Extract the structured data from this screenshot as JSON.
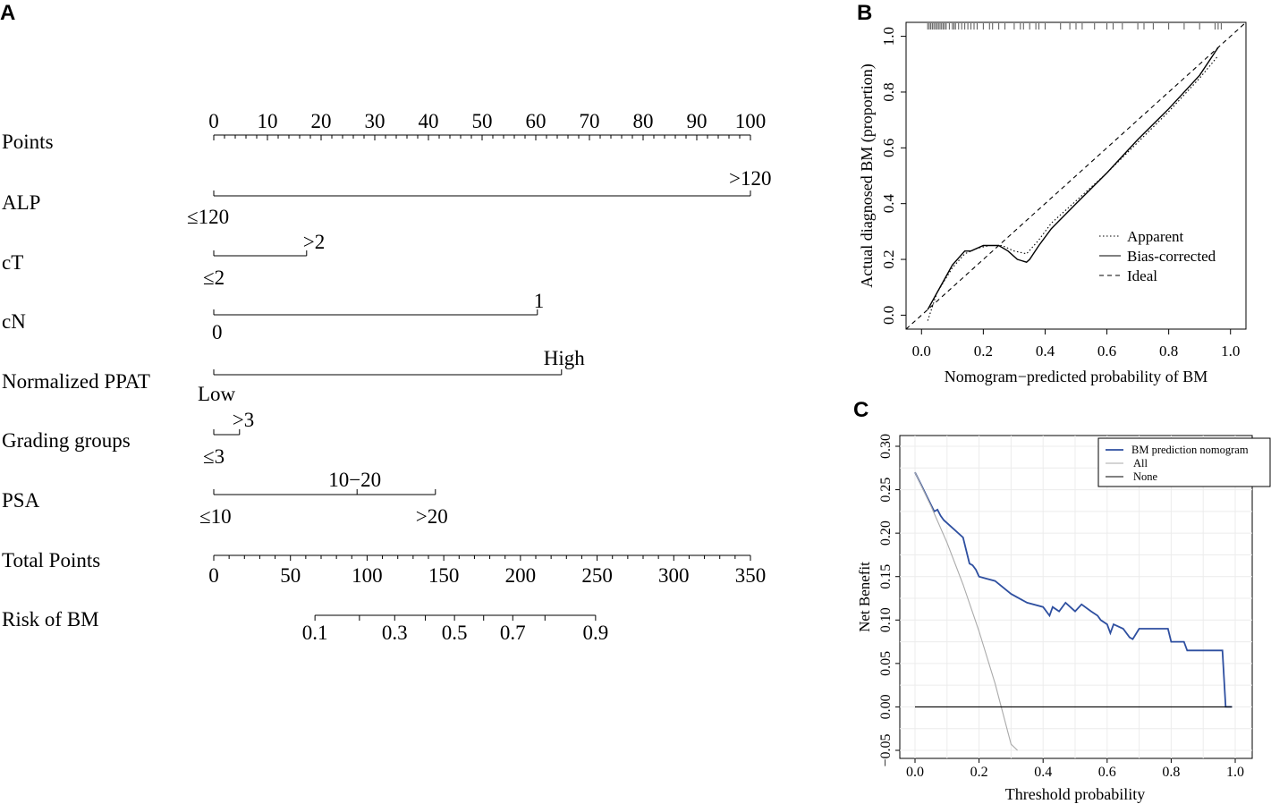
{
  "panel_labels": {
    "a": "A",
    "b": "B",
    "c": "C"
  },
  "chart_data": [
    {
      "type": "nomogram",
      "panel": "A",
      "points_axis": {
        "label": "Points",
        "min": 0,
        "max": 100,
        "major_ticks": [
          0,
          10,
          20,
          30,
          40,
          50,
          60,
          70,
          80,
          90,
          100
        ],
        "minor_step": 2
      },
      "variables": [
        {
          "name": "ALP",
          "levels": [
            {
              "label": "≤120",
              "points": 0
            },
            {
              "label": ">120",
              "points": 100
            }
          ]
        },
        {
          "name": "cT",
          "levels": [
            {
              "label": "≤2",
              "points": 0
            },
            {
              "label": ">2",
              "points": 17.3
            }
          ]
        },
        {
          "name": "cN",
          "levels": [
            {
              "label": "0",
              "points": 0
            },
            {
              "label": "1",
              "points": 60.3
            }
          ]
        },
        {
          "name": "Normalized PPAT",
          "levels": [
            {
              "label": "Low",
              "points": 0
            },
            {
              "label": "High",
              "points": 64.8
            }
          ]
        },
        {
          "name": "Grading groups",
          "levels": [
            {
              "label": "≤3",
              "points": 0
            },
            {
              "label": ">3",
              "points": 4.8
            }
          ]
        },
        {
          "name": "PSA",
          "levels": [
            {
              "label": "≤10",
              "points": 0
            },
            {
              "label": "10−20",
              "points": 26.7
            },
            {
              "label": ">20",
              "points": 41.3
            }
          ]
        }
      ],
      "total_points_axis": {
        "label": "Total Points",
        "min": 0,
        "max": 350,
        "major_ticks": [
          0,
          50,
          100,
          150,
          200,
          250,
          300,
          350
        ],
        "minor_step": 10
      },
      "risk_axis": {
        "label": "Risk of BM",
        "tick_values": [
          0.1,
          0.2,
          0.3,
          0.4,
          0.5,
          0.6,
          0.7,
          0.8,
          0.9
        ],
        "tick_total_points": [
          66,
          95,
          118,
          138,
          157,
          176,
          195,
          216,
          249
        ],
        "labeled": [
          "0.1",
          "0.3",
          "0.5",
          "0.7",
          "0.9"
        ]
      }
    },
    {
      "type": "line",
      "panel": "B",
      "xlabel": "Nomogram−predicted probability of BM",
      "ylabel": "Actual diagnosed BM (proportion)",
      "xlim": [
        -0.05,
        1.05
      ],
      "ylim": [
        -0.05,
        1.05
      ],
      "x_ticks": [
        "0.0",
        "0.2",
        "0.4",
        "0.6",
        "0.8",
        "1.0"
      ],
      "y_ticks": [
        "0.0",
        "0.2",
        "0.4",
        "0.6",
        "0.8",
        "1.0"
      ],
      "legend": {
        "position": "bottom-right",
        "entries": [
          "Apparent",
          "Bias-corrected",
          "Ideal"
        ]
      },
      "series": [
        {
          "name": "Apparent",
          "style": "dotted",
          "x": [
            0.02,
            0.05,
            0.1,
            0.14,
            0.18,
            0.22,
            0.26,
            0.3,
            0.34,
            0.38,
            0.42,
            0.5,
            0.6,
            0.7,
            0.8,
            0.9,
            0.96
          ],
          "y": [
            -0.02,
            0.08,
            0.17,
            0.22,
            0.24,
            0.25,
            0.25,
            0.23,
            0.22,
            0.27,
            0.33,
            0.41,
            0.51,
            0.62,
            0.73,
            0.85,
            0.93
          ]
        },
        {
          "name": "Bias-corrected",
          "style": "solid",
          "x": [
            0.02,
            0.05,
            0.1,
            0.14,
            0.16,
            0.2,
            0.25,
            0.28,
            0.31,
            0.34,
            0.35,
            0.38,
            0.42,
            0.5,
            0.6,
            0.7,
            0.8,
            0.9,
            0.96
          ],
          "y": [
            0.02,
            0.08,
            0.18,
            0.23,
            0.23,
            0.25,
            0.25,
            0.23,
            0.2,
            0.19,
            0.2,
            0.25,
            0.31,
            0.4,
            0.51,
            0.63,
            0.74,
            0.86,
            0.96
          ]
        },
        {
          "name": "Ideal",
          "style": "dashed",
          "x": [
            -0.05,
            1.05
          ],
          "y": [
            -0.05,
            1.05
          ]
        }
      ],
      "rug": [
        0.02,
        0.025,
        0.03,
        0.035,
        0.04,
        0.045,
        0.05,
        0.055,
        0.06,
        0.065,
        0.07,
        0.075,
        0.08,
        0.09,
        0.1,
        0.105,
        0.11,
        0.12,
        0.13,
        0.14,
        0.15,
        0.16,
        0.17,
        0.18,
        0.2,
        0.22,
        0.23,
        0.25,
        0.27,
        0.3,
        0.32,
        0.33,
        0.35,
        0.37,
        0.38,
        0.4,
        0.45,
        0.48,
        0.5,
        0.52,
        0.56,
        0.6,
        0.62,
        0.65,
        0.7,
        0.72,
        0.75,
        0.8,
        0.85,
        0.9,
        0.95,
        0.96,
        0.97
      ]
    },
    {
      "type": "line",
      "panel": "C",
      "xlabel": "Threshold probability",
      "ylabel": "Net Benefit",
      "xlim": [
        0,
        1
      ],
      "ylim": [
        -0.05,
        0.3
      ],
      "x_ticks": [
        "0.0",
        "0.2",
        "0.4",
        "0.6",
        "0.8",
        "1.0"
      ],
      "y_ticks": [
        "−0.05",
        "0.00",
        "0.05",
        "0.10",
        "0.15",
        "0.20",
        "0.25",
        "0.30"
      ],
      "grid": true,
      "legend": {
        "position": "top-right",
        "entries": [
          "BM prediction nomogram",
          "All",
          "None"
        ]
      },
      "series": [
        {
          "name": "BM prediction nomogram",
          "color": "#2e4fa0",
          "x": [
            0,
            0.02,
            0.04,
            0.06,
            0.07,
            0.08,
            0.09,
            0.12,
            0.15,
            0.17,
            0.18,
            0.19,
            0.2,
            0.22,
            0.25,
            0.3,
            0.35,
            0.4,
            0.42,
            0.43,
            0.45,
            0.47,
            0.5,
            0.52,
            0.55,
            0.57,
            0.58,
            0.6,
            0.61,
            0.62,
            0.65,
            0.67,
            0.68,
            0.7,
            0.79,
            0.8,
            0.84,
            0.85,
            0.96,
            0.97,
            0.99
          ],
          "y": [
            0.27,
            0.255,
            0.24,
            0.225,
            0.227,
            0.22,
            0.215,
            0.205,
            0.195,
            0.165,
            0.163,
            0.158,
            0.15,
            0.148,
            0.145,
            0.13,
            0.12,
            0.115,
            0.105,
            0.115,
            0.11,
            0.12,
            0.11,
            0.118,
            0.11,
            0.105,
            0.1,
            0.095,
            0.085,
            0.095,
            0.09,
            0.08,
            0.078,
            0.09,
            0.09,
            0.075,
            0.075,
            0.065,
            0.065,
            0,
            0
          ]
        },
        {
          "name": "All",
          "color": "#aaaaaa",
          "x": [
            0,
            0.05,
            0.1,
            0.15,
            0.2,
            0.25,
            0.3,
            0.32
          ],
          "y": [
            0.27,
            0.231,
            0.189,
            0.141,
            0.087,
            0.027,
            -0.043,
            -0.05
          ]
        },
        {
          "name": "None",
          "color": "#000000",
          "x": [
            0,
            0.99
          ],
          "y": [
            0,
            0
          ]
        }
      ]
    }
  ]
}
